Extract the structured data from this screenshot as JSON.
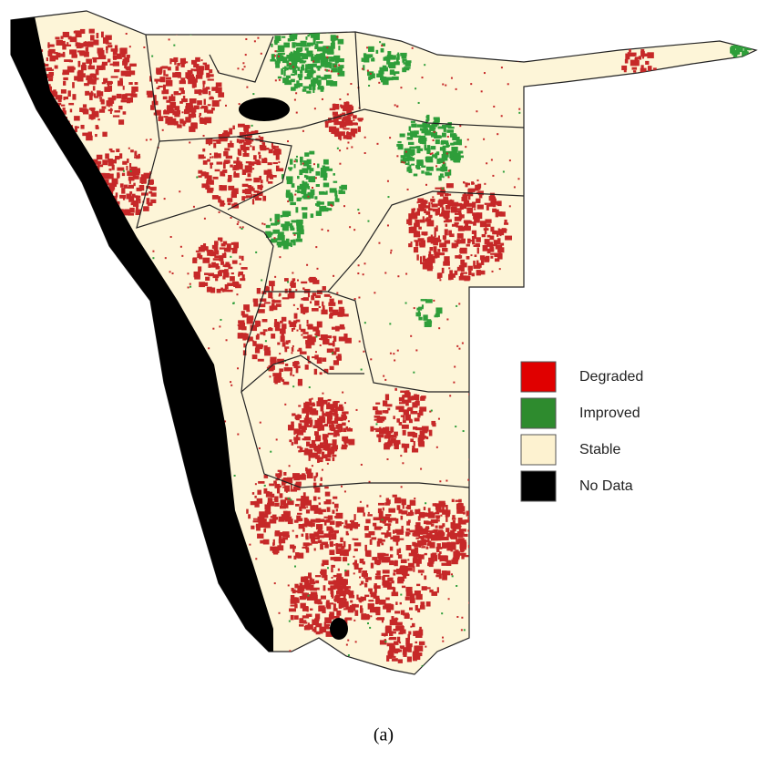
{
  "legend": {
    "items": [
      {
        "label": "Degraded",
        "color": "#e00000"
      },
      {
        "label": "Improved",
        "color": "#2e8b2e"
      },
      {
        "label": "Stable",
        "color": "#fdf2d0"
      },
      {
        "label": "No Data",
        "color": "#000000"
      }
    ]
  },
  "caption": "(a)"
}
